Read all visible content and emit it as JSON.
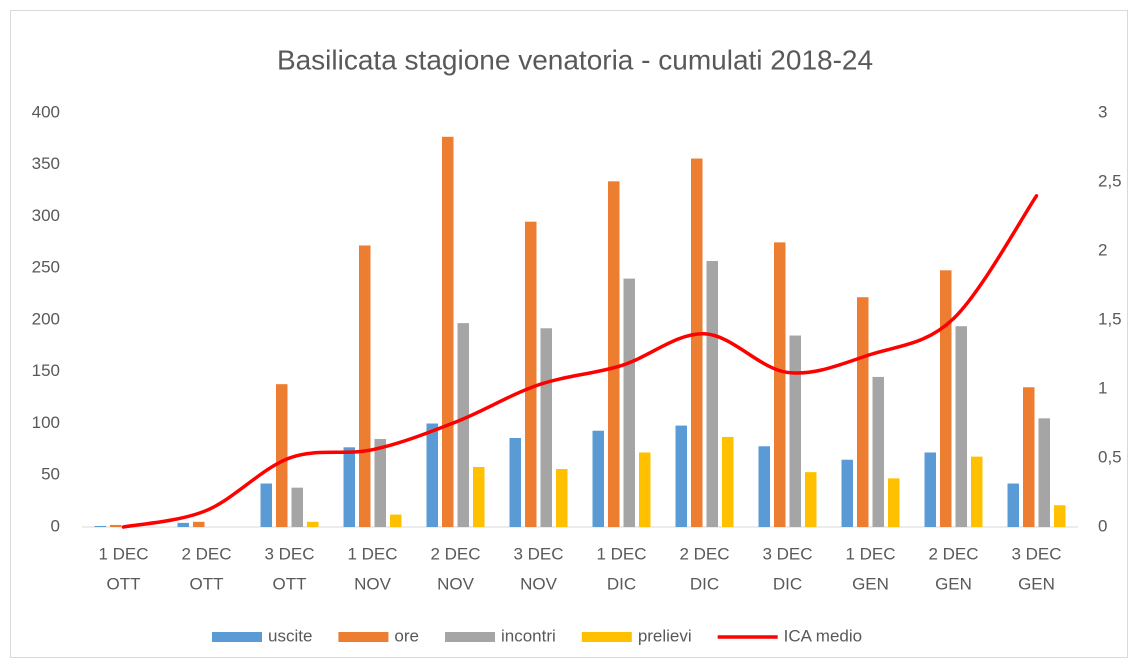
{
  "chart_data": {
    "type": "bar",
    "title": "Basilicata stagione venatoria - cumulati 2018-24",
    "categories": [
      [
        "1 DEC",
        "OTT"
      ],
      [
        "2 DEC",
        "OTT"
      ],
      [
        "3 DEC",
        "OTT"
      ],
      [
        "1 DEC",
        "NOV"
      ],
      [
        "2 DEC",
        "NOV"
      ],
      [
        "3 DEC",
        "NOV"
      ],
      [
        "1 DEC",
        "DIC"
      ],
      [
        "2 DEC",
        "DIC"
      ],
      [
        "3 DEC",
        "DIC"
      ],
      [
        "1 DEC",
        "GEN"
      ],
      [
        "2 DEC",
        "GEN"
      ],
      [
        "3 DEC",
        "GEN"
      ]
    ],
    "series": [
      {
        "name": "uscite",
        "color": "#5b9bd5",
        "type": "bar",
        "values": [
          1,
          4,
          42,
          77,
          100,
          86,
          93,
          98,
          78,
          65,
          72,
          42
        ]
      },
      {
        "name": "ore",
        "color": "#ed7d31",
        "type": "bar",
        "values": [
          2,
          5,
          138,
          272,
          377,
          295,
          334,
          356,
          275,
          222,
          248,
          135
        ]
      },
      {
        "name": "incontri",
        "color": "#a5a5a5",
        "type": "bar",
        "values": [
          0,
          0,
          38,
          85,
          197,
          192,
          240,
          257,
          185,
          145,
          194,
          105
        ]
      },
      {
        "name": "prelievi",
        "color": "#ffc000",
        "type": "bar",
        "values": [
          0,
          0,
          5,
          12,
          58,
          56,
          72,
          87,
          53,
          47,
          68,
          21
        ]
      },
      {
        "name": "ICA medio",
        "color": "#ff0000",
        "type": "line",
        "axis": "y2",
        "smooth": true,
        "values": [
          0,
          0.12,
          0.5,
          0.56,
          0.76,
          1.03,
          1.17,
          1.4,
          1.12,
          1.25,
          1.51,
          2.4
        ]
      }
    ],
    "ylim": [
      0,
      400
    ],
    "yticks": [
      0,
      50,
      100,
      150,
      200,
      250,
      300,
      350,
      400
    ],
    "y2lim": [
      0,
      3
    ],
    "y2ticks": [
      0,
      {
        "value": 0.5,
        "label": "0,5"
      },
      1,
      {
        "value": 1.5,
        "label": "1,5"
      },
      2,
      {
        "value": 2.5,
        "label": "2,5"
      },
      3
    ],
    "grid": false,
    "legend": "bottom"
  }
}
